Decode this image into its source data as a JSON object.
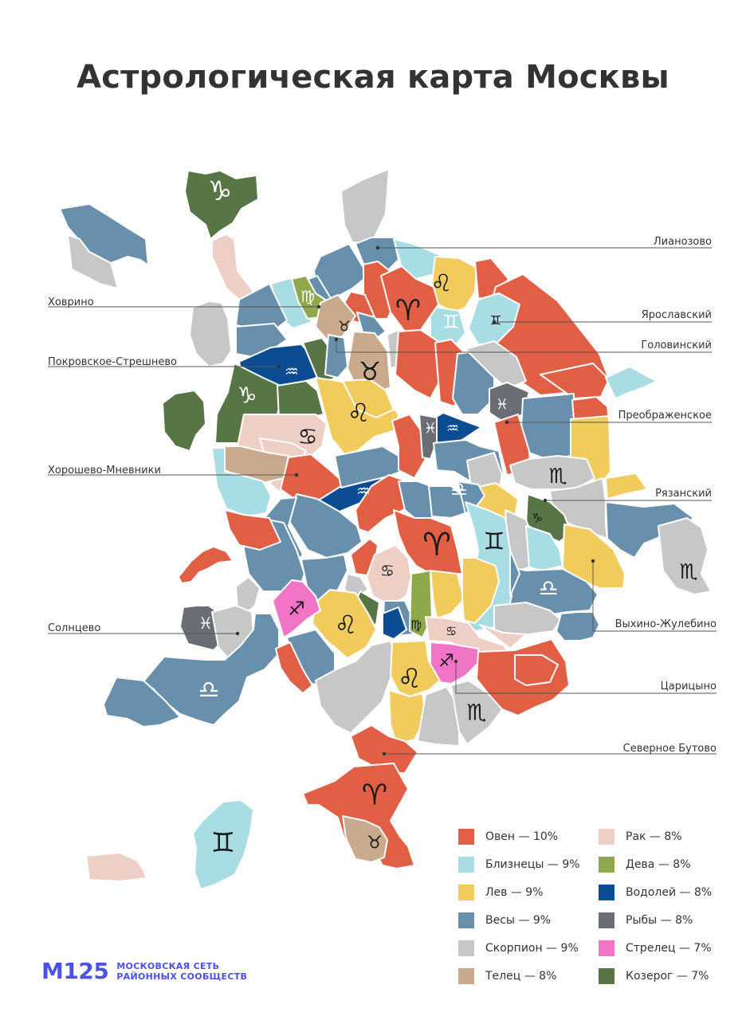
{
  "title": "Астрологическая карта Москвы",
  "colors": {
    "Овен": "#e05f45",
    "Близнецы": "#a8dde3",
    "Лев": "#f1cb5c",
    "Весы": "#6890ac",
    "Скорпион": "#c7c7c7",
    "Телец": "#c9aa8c",
    "Рак": "#edcfc5",
    "Дева": "#8fa84b",
    "Водолей": "#0b4c93",
    "Рыбы": "#6a6e74",
    "Стрелец": "#f174c6",
    "Козерог": "#587546"
  },
  "icons": {
    "Овен": "♈",
    "Телец": "♉",
    "Близнецы": "♊",
    "Рак": "♋",
    "Лев": "♌",
    "Дева": "♍",
    "Весы": "♎",
    "Скорпион": "♏",
    "Стрелец": "♐",
    "Козерог": "♑",
    "Водолей": "♒",
    "Рыбы": "♓"
  },
  "callouts": [
    {
      "id": "lianozovo",
      "label": "Лианозово"
    },
    {
      "id": "khovrino",
      "label": "Ховрино"
    },
    {
      "id": "yaroslavsky",
      "label": "Ярославский"
    },
    {
      "id": "golovinsky",
      "label": "Головинский"
    },
    {
      "id": "pokrovskoe",
      "label": "Покровское-Стрешнево"
    },
    {
      "id": "preobrazhenskoe",
      "label": "Преображенское"
    },
    {
      "id": "khoroshevo",
      "label": "Хорошево-Мневники"
    },
    {
      "id": "ryazansky",
      "label": "Рязанский"
    },
    {
      "id": "solntsevo",
      "label": "Солнцево"
    },
    {
      "id": "vykhino",
      "label": "Выхино-Жулебино"
    },
    {
      "id": "tsaritsyno",
      "label": "Царицыно"
    },
    {
      "id": "butovo",
      "label": "Северное Бутово"
    }
  ],
  "legend": [
    {
      "sign": "Овен",
      "label": "Овен — 10%",
      "percent": 10
    },
    {
      "sign": "Рак",
      "label": "Рак — 8%",
      "percent": 8
    },
    {
      "sign": "Близнецы",
      "label": "Близнецы — 9%",
      "percent": 9
    },
    {
      "sign": "Дева",
      "label": "Дева — 8%",
      "percent": 8
    },
    {
      "sign": "Лев",
      "label": "Лев — 9%",
      "percent": 9
    },
    {
      "sign": "Водолей",
      "label": "Водолей — 8%",
      "percent": 8
    },
    {
      "sign": "Весы",
      "label": "Весы — 9%",
      "percent": 9
    },
    {
      "sign": "Рыбы",
      "label": "Рыбы — 8%",
      "percent": 8
    },
    {
      "sign": "Скорпион",
      "label": "Скорпион — 9%",
      "percent": 9
    },
    {
      "sign": "Стрелец",
      "label": "Стрелец — 7%",
      "percent": 7
    },
    {
      "sign": "Телец",
      "label": "Телец — 8%",
      "percent": 8
    },
    {
      "sign": "Козерог",
      "label": "Козерог — 7%",
      "percent": 7
    }
  ],
  "brand": {
    "logo": "M125",
    "line1": "МОСКОВСКАЯ СЕТЬ",
    "line2": "РАЙОННЫХ СООБЩЕСТВ"
  }
}
